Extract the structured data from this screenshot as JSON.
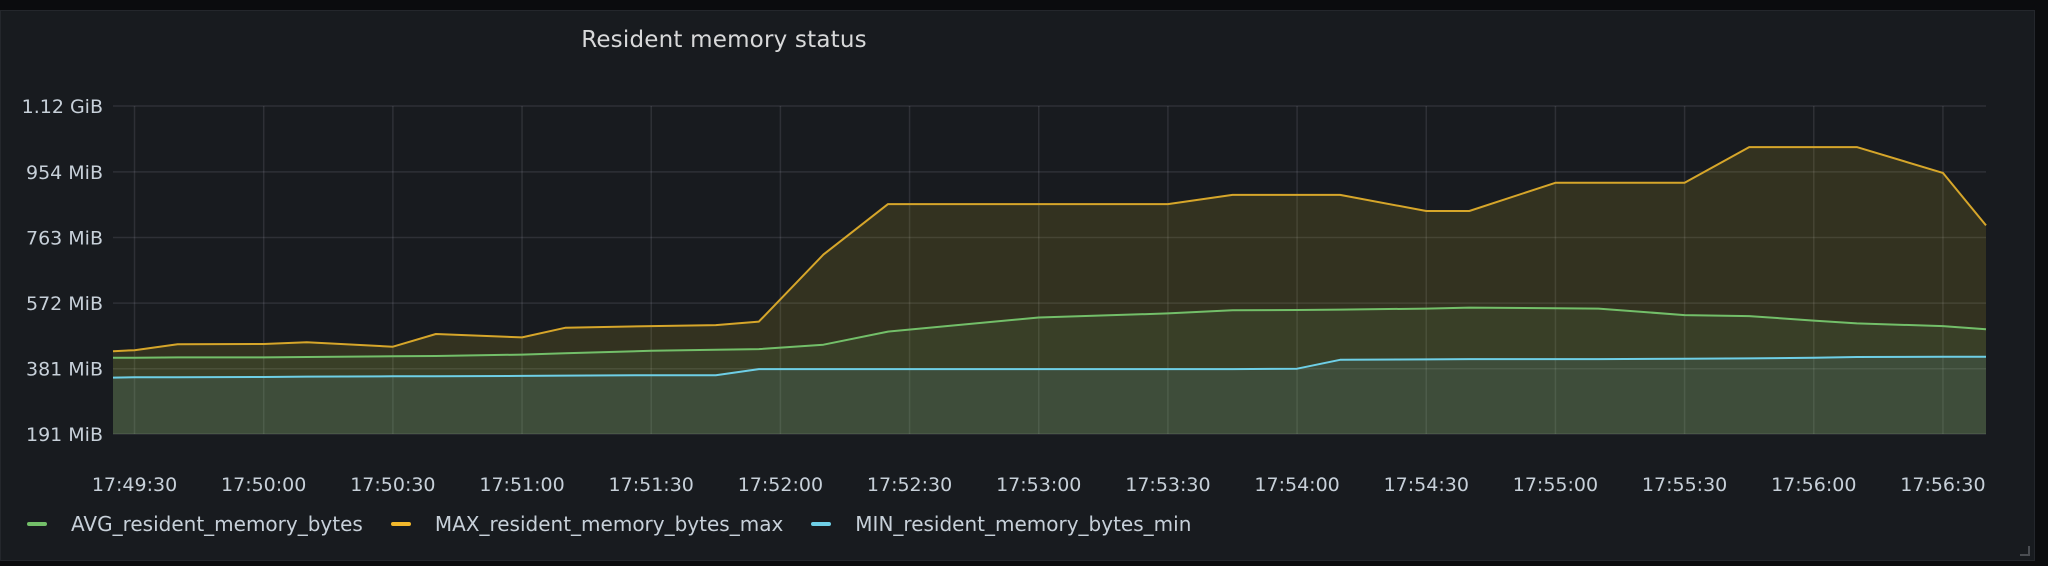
{
  "panel": {
    "title": "Resident memory status"
  },
  "chart_data": {
    "type": "line",
    "fill": "area",
    "grid": true,
    "legend_position": "bottom",
    "y_unit": "MiB",
    "y_ticks": [
      {
        "label": "1.12 GiB",
        "value": 1145.6
      },
      {
        "label": "954 MiB",
        "value": 954
      },
      {
        "label": "763 MiB",
        "value": 763
      },
      {
        "label": "572 MiB",
        "value": 572
      },
      {
        "label": "381 MiB",
        "value": 381
      },
      {
        "label": "191 MiB",
        "value": 191
      }
    ],
    "ylim": [
      191,
      1145.6
    ],
    "x_ticks": [
      "17:49:30",
      "17:50:00",
      "17:50:30",
      "17:51:00",
      "17:51:30",
      "17:52:00",
      "17:52:30",
      "17:53:00",
      "17:53:30",
      "17:54:00",
      "17:54:30",
      "17:55:00",
      "17:55:30",
      "17:56:00",
      "17:56:30"
    ],
    "x": [
      "17:49:25",
      "17:49:30",
      "17:49:40",
      "17:50:00",
      "17:50:10",
      "17:50:30",
      "17:50:40",
      "17:51:00",
      "17:51:10",
      "17:51:30",
      "17:51:45",
      "17:51:55",
      "17:52:10",
      "17:52:25",
      "17:53:00",
      "17:53:30",
      "17:53:45",
      "17:54:00",
      "17:54:10",
      "17:54:30",
      "17:54:40",
      "17:55:00",
      "17:55:10",
      "17:55:30",
      "17:55:45",
      "17:56:00",
      "17:56:10",
      "17:56:30",
      "17:56:40"
    ],
    "series": [
      {
        "name": "AVG_resident_memory_bytes",
        "color": "#73bf69",
        "values": [
          413,
          413,
          414,
          414,
          415,
          417,
          418,
          422,
          426,
          433,
          436,
          438,
          451,
          489,
          530,
          542,
          551,
          552,
          553,
          556,
          559,
          557,
          556,
          537,
          534,
          521,
          513,
          505,
          496
        ]
      },
      {
        "name": "MAX_resident_memory_bytes_max",
        "color": "#fade2a",
        "values": [
          432,
          435,
          452,
          453,
          458,
          445,
          482,
          472,
          500,
          505,
          508,
          518,
          713,
          860,
          860,
          860,
          887,
          887,
          887,
          840,
          840,
          922,
          922,
          922,
          1026,
          1026,
          1026,
          951,
          798
        ]
      },
      {
        "name": "MIN_resident_memory_bytes_min",
        "color": "#5794f2",
        "values": [
          355,
          356,
          356,
          357,
          358,
          359,
          359,
          360,
          361,
          362,
          362,
          380,
          380,
          380,
          380,
          380,
          380,
          381,
          407,
          408,
          409,
          409,
          409,
          410,
          411,
          413,
          415,
          416,
          416
        ]
      }
    ]
  },
  "legend": {
    "items": [
      {
        "label": "AVG_resident_memory_bytes",
        "color": "#73bf69"
      },
      {
        "label": "MAX_resident_memory_bytes_max",
        "color": "#f2b82c"
      },
      {
        "label": "MIN_resident_memory_bytes_min",
        "color": "#6ecfe6"
      }
    ]
  }
}
